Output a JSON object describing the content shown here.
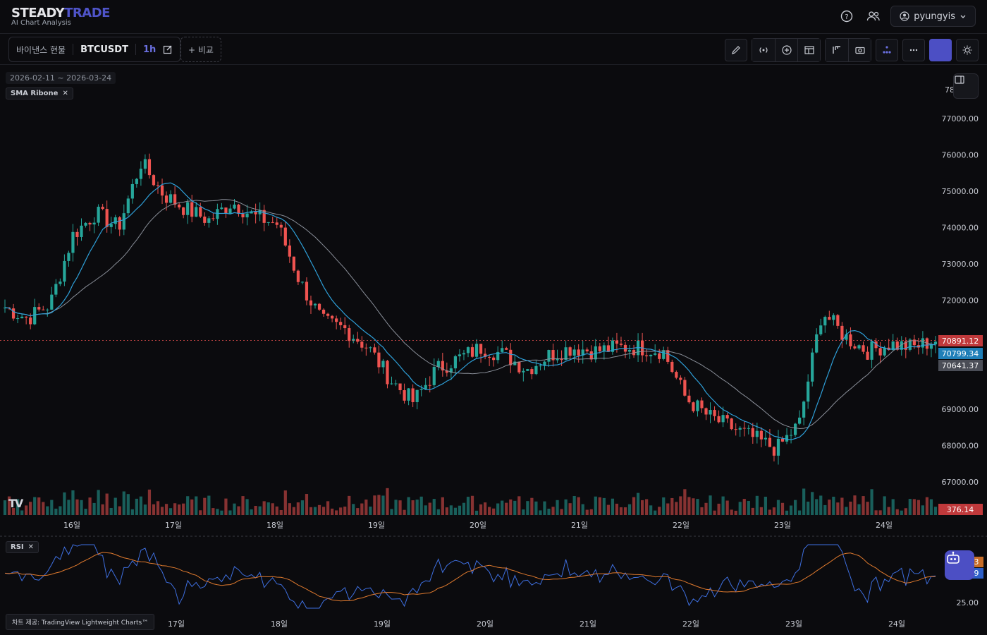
{
  "brand": {
    "part1": "STEADY",
    "part2": "TRADE",
    "subtitle": "AI Chart Analysis"
  },
  "user": {
    "name": "pyungyis"
  },
  "toolbar": {
    "exchange": "바이낸스 현물",
    "symbol": "BTCUSDT",
    "timeframe": "1h",
    "compare_label": "+ 비교"
  },
  "chart": {
    "range": "2026-02-11 ~ 2026-03-24",
    "indicator": "SMA Ribone",
    "rsi_label": "RSI",
    "credit": "차트 제공: TradingView Lightweight Charts™",
    "price_ticks": [
      "77000.00",
      "76000.00",
      "75000.00",
      "74000.00",
      "73000.00",
      "72000.00",
      "69000.00",
      "68000.00",
      "67000.00"
    ],
    "price_top_tick": "78",
    "time_ticks": [
      "16일",
      "17일",
      "18일",
      "19일",
      "20일",
      "21일",
      "22일",
      "23일",
      "24일"
    ],
    "rsi_time_ticks": [
      "17일",
      "18일",
      "19일",
      "20일",
      "21일",
      "22일",
      "23일",
      "24일"
    ],
    "rsi_tick": "25.00",
    "price_label_last": "70891.12",
    "price_label_sma_fast": "70799.34",
    "price_label_sma_slow": "70641.37",
    "volume_label": "376.14",
    "rsi_label_a": "3",
    "rsi_label_b": "9",
    "colors": {
      "up": "#26a69a",
      "down": "#ef5350",
      "sma_fast": "#2e9fd8",
      "sma_slow": "#8a8f99",
      "rsi": "#3e6fe0",
      "rsi_ma": "#e07a2e",
      "accent": "#4c4fc4"
    }
  },
  "chart_data": {
    "type": "candlestick",
    "x": [
      "16일",
      "17일",
      "18일",
      "19일",
      "20일",
      "21일",
      "22일",
      "23일",
      "24일"
    ],
    "close_path": [
      71800,
      71500,
      71900,
      73800,
      74400,
      74000,
      75800,
      74900,
      74500,
      74200,
      74700,
      74300,
      74100,
      72500,
      71400,
      71200,
      70700,
      69800,
      69200,
      70100,
      70400,
      70700,
      70500,
      70100,
      70500,
      70700,
      70600,
      70700,
      70700,
      70600,
      69300,
      68800,
      68500,
      68200,
      67900,
      68600,
      71700,
      71000,
      70600,
      70800,
      70700,
      70900
    ],
    "sma_fast_last": 70799.34,
    "sma_slow_last": 70641.37,
    "last_price": 70891.12,
    "last_volume": 376.14
  }
}
